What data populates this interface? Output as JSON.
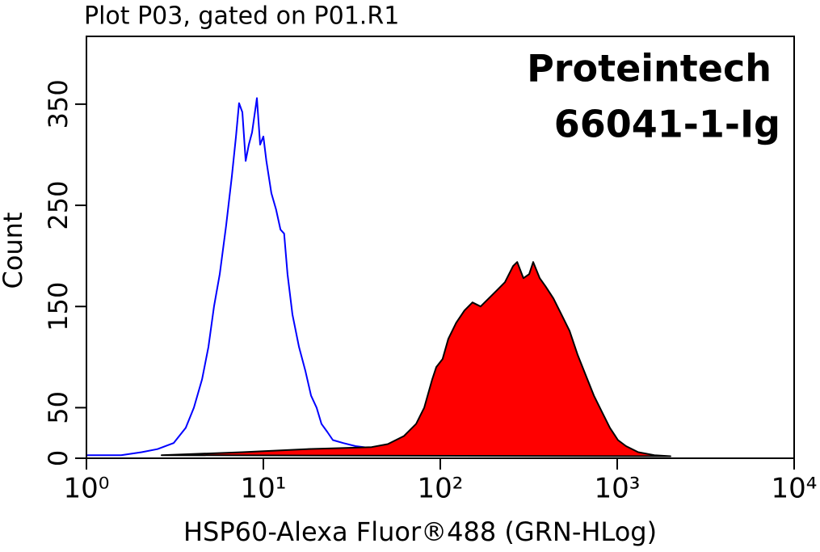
{
  "chart_data": {
    "type": "histogram-overlay",
    "title": "Plot P03, gated on P01.R1",
    "annotations": [
      "Proteintech",
      "66041-1-Ig"
    ],
    "x_label": "HSP60-Alexa Fluor®488 (GRN-HLog)",
    "y_label": "Count",
    "xscale": "log",
    "xlim": [
      1,
      10000
    ],
    "xticks": [
      {
        "value": 1,
        "label": "10⁰"
      },
      {
        "value": 10,
        "label": "10¹"
      },
      {
        "value": 100,
        "label": "10²"
      },
      {
        "value": 1000,
        "label": "10³"
      },
      {
        "value": 10000,
        "label": "10⁴"
      }
    ],
    "ylim": [
      0,
      417
    ],
    "yticks": [
      0,
      50,
      150,
      250,
      350
    ],
    "series": [
      {
        "color": "#0000ff",
        "fill": false,
        "x": [
          1,
          1.57,
          2.05,
          2.52,
          3.11,
          3.64,
          4.05,
          4.5,
          4.89,
          5.26,
          5.67,
          6.16,
          6.63,
          7.0,
          7.29,
          7.61,
          7.94,
          8.28,
          8.63,
          9.19,
          9.59,
          10.0,
          10.4,
          11.1,
          11.8,
          12.5,
          13.1,
          13.7,
          14.6,
          15.9,
          17.3,
          18.6,
          20.0,
          21.3,
          23.0,
          24.7,
          28.3,
          33.2,
          40.9,
          50.5,
          62.3
        ],
        "values": [
          3,
          3,
          6,
          9,
          15,
          30,
          50,
          78,
          110,
          150,
          182,
          230,
          278,
          318,
          351,
          342,
          294,
          310,
          322,
          356,
          310,
          318,
          294,
          262,
          246,
          226,
          222,
          182,
          142,
          110,
          86,
          62,
          50,
          34,
          26,
          18,
          15,
          12,
          10,
          6,
          3
        ]
      },
      {
        "color": "#ff0000",
        "fill": true,
        "x": [
          2.66,
          7.61,
          17.6,
          26.9,
          40.9,
          50.5,
          62.3,
          73.0,
          81.1,
          90.0,
          94.9,
          103,
          111,
          123,
          137,
          152,
          169,
          188,
          209,
          232,
          258,
          272,
          295,
          318,
          335,
          365,
          393,
          436,
          484,
          538,
          598,
          664,
          738,
          819,
          910,
          1010,
          1122,
          1315,
          1622,
          2000
        ],
        "values": [
          3,
          6,
          9,
          10,
          11,
          14,
          22,
          34,
          50,
          78,
          90,
          98,
          118,
          134,
          146,
          154,
          150,
          158,
          166,
          174,
          190,
          194,
          178,
          182,
          194,
          178,
          170,
          158,
          142,
          126,
          102,
          82,
          62,
          46,
          30,
          18,
          12,
          6,
          3,
          2
        ]
      }
    ]
  }
}
